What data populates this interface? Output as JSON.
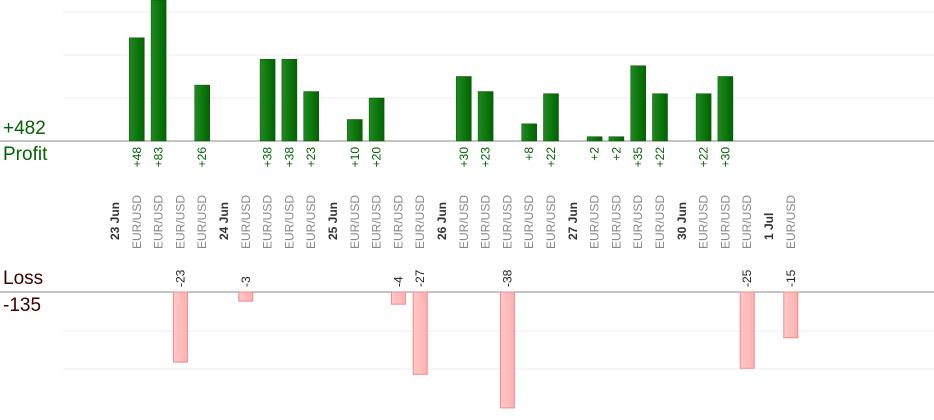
{
  "summary": {
    "profit_total": "+482",
    "profit_label": "Profit",
    "loss_label": "Loss",
    "loss_total": "-135"
  },
  "colors": {
    "profit": "#006400",
    "loss": "#ffb0b0",
    "loss_stroke": "#f08a8a",
    "summary_loss_text": "#3a0000",
    "axis": "#888888",
    "grid": "#eeeeee",
    "date_text": "#333333",
    "instrument_text": "#888888"
  },
  "chart_data": {
    "type": "bar",
    "grid": true,
    "columns": [
      {
        "date": "23 Jun",
        "instrument": "",
        "value": null
      },
      {
        "date": "",
        "instrument": "EUR/USD",
        "value": 48
      },
      {
        "date": "",
        "instrument": "EUR/USD",
        "value": 83
      },
      {
        "date": "",
        "instrument": "EUR/USD",
        "value": -23
      },
      {
        "date": "",
        "instrument": "EUR/USD",
        "value": 26
      },
      {
        "date": "24 Jun",
        "instrument": "",
        "value": null
      },
      {
        "date": "",
        "instrument": "EUR/USD",
        "value": -3
      },
      {
        "date": "",
        "instrument": "EUR/USD",
        "value": 38
      },
      {
        "date": "",
        "instrument": "EUR/USD",
        "value": 38
      },
      {
        "date": "",
        "instrument": "EUR/USD",
        "value": 23
      },
      {
        "date": "25 Jun",
        "instrument": "",
        "value": null
      },
      {
        "date": "",
        "instrument": "EUR/USD",
        "value": 10
      },
      {
        "date": "",
        "instrument": "EUR/USD",
        "value": 20
      },
      {
        "date": "",
        "instrument": "EUR/USD",
        "value": -4
      },
      {
        "date": "",
        "instrument": "EUR/USD",
        "value": -27
      },
      {
        "date": "26 Jun",
        "instrument": "",
        "value": null
      },
      {
        "date": "",
        "instrument": "EUR/USD",
        "value": 30
      },
      {
        "date": "",
        "instrument": "EUR/USD",
        "value": 23
      },
      {
        "date": "",
        "instrument": "EUR/USD",
        "value": -38
      },
      {
        "date": "",
        "instrument": "EUR/USD",
        "value": 8
      },
      {
        "date": "",
        "instrument": "EUR/USD",
        "value": 22
      },
      {
        "date": "27 Jun",
        "instrument": "",
        "value": null
      },
      {
        "date": "",
        "instrument": "EUR/USD",
        "value": 2
      },
      {
        "date": "",
        "instrument": "EUR/USD",
        "value": 2
      },
      {
        "date": "",
        "instrument": "EUR/USD",
        "value": 35
      },
      {
        "date": "",
        "instrument": "EUR/USD",
        "value": 22
      },
      {
        "date": "30 Jun",
        "instrument": "",
        "value": null
      },
      {
        "date": "",
        "instrument": "EUR/USD",
        "value": 22
      },
      {
        "date": "",
        "instrument": "EUR/USD",
        "value": 30
      },
      {
        "date": "",
        "instrument": "EUR/USD",
        "value": -25
      },
      {
        "date": "1 Jul",
        "instrument": "",
        "value": null
      },
      {
        "date": "",
        "instrument": "EUR/USD",
        "value": -15
      }
    ]
  }
}
